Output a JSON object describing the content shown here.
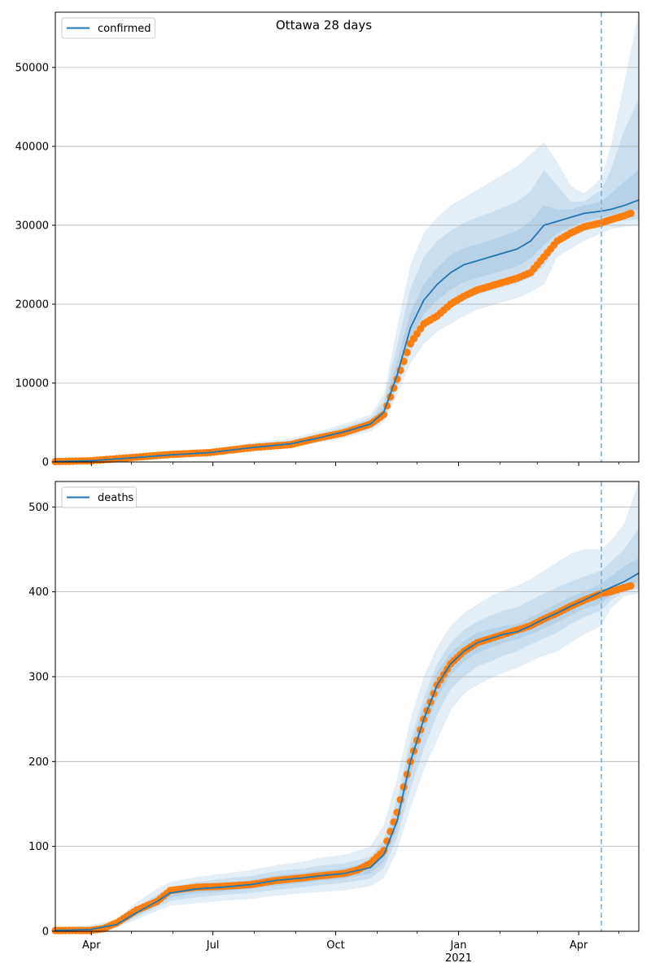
{
  "title": "Ottawa 28 days",
  "colors": {
    "model": "#1f77b4",
    "observed": "#ff7f0e",
    "band": "#1f77b4",
    "grid": "#b0b0b0",
    "forecast_line": "#7fb1d4"
  },
  "x_axis": {
    "tick_labels": [
      "Apr",
      "Jul",
      "Oct",
      "Jan",
      "Apr"
    ],
    "tick_days": [
      31,
      122,
      214,
      306,
      396
    ],
    "year_label": "2021",
    "minor_tick_days": [
      61,
      92,
      153,
      184,
      245,
      275,
      337,
      365,
      426
    ],
    "range_days": [
      4,
      441
    ],
    "forecast_day": 413
  },
  "chart_data": [
    {
      "type": "line",
      "legend": "confirmed",
      "ylim": [
        0,
        57000
      ],
      "yticks": [
        0,
        10000,
        20000,
        30000,
        40000,
        50000
      ],
      "tick_labels": [
        "0",
        "10000",
        "20000",
        "30000",
        "40000",
        "50000"
      ],
      "series": [
        {
          "name": "confirmed",
          "x": [
            4,
            30,
            60,
            90,
            120,
            150,
            180,
            200,
            220,
            240,
            250,
            260,
            270,
            280,
            290,
            300,
            310,
            320,
            330,
            340,
            350,
            360,
            370,
            380,
            390,
            400,
            413,
            420,
            430,
            441
          ],
          "values": [
            50,
            150,
            500,
            900,
            1200,
            1800,
            2300,
            3000,
            3800,
            4800,
            6300,
            11000,
            17000,
            20500,
            22500,
            24000,
            25000,
            25500,
            26000,
            26500,
            27000,
            28000,
            30000,
            30500,
            31000,
            31500,
            31800,
            32000,
            32500,
            33200
          ]
        }
      ],
      "observed": {
        "x": [
          4,
          30,
          60,
          90,
          120,
          150,
          180,
          200,
          220,
          240,
          250,
          260,
          270,
          280,
          290,
          300,
          310,
          320,
          330,
          340,
          350,
          360,
          370,
          380,
          390,
          400,
          413,
          420,
          430,
          435
        ],
        "values": [
          50,
          150,
          550,
          950,
          1200,
          1800,
          2200,
          3000,
          3700,
          4800,
          6000,
          10500,
          15000,
          17500,
          18500,
          20000,
          21000,
          21800,
          22300,
          22800,
          23300,
          24000,
          26000,
          28000,
          29000,
          29800,
          30300,
          30700,
          31200,
          31500
        ]
      },
      "bands": [
        {
          "lower": [
            50,
            120,
            400,
            700,
            900,
            1400,
            1800,
            2400,
            3000,
            3900,
            5000,
            8500,
            12500,
            15000,
            16500,
            17500,
            18500,
            19300,
            19800,
            20300,
            20800,
            21500,
            22500,
            26000,
            27000,
            28000,
            29000,
            29500,
            29800,
            30000
          ],
          "upper": [
            60,
            200,
            700,
            1200,
            1600,
            2400,
            3000,
            3800,
            4800,
            6000,
            8500,
            17000,
            25000,
            29000,
            31000,
            32500,
            33500,
            34500,
            35500,
            36500,
            37500,
            39000,
            40500,
            38000,
            35000,
            34000,
            36000,
            40000,
            48000,
            57000
          ]
        },
        {
          "lower": [
            50,
            130,
            420,
            760,
            1000,
            1500,
            1950,
            2600,
            3300,
            4200,
            5400,
            9500,
            14000,
            16800,
            18500,
            19600,
            20500,
            21200,
            21700,
            22200,
            22700,
            23400,
            24800,
            27500,
            28500,
            29200,
            30000,
            30300,
            30600,
            30800
          ],
          "upper": [
            55,
            180,
            620,
            1080,
            1450,
            2150,
            2700,
            3500,
            4400,
            5600,
            7700,
            14800,
            22000,
            26000,
            28000,
            29300,
            30300,
            31000,
            31600,
            32300,
            33000,
            34300,
            37000,
            35000,
            33000,
            33000,
            34500,
            37000,
            42000,
            46000
          ]
        },
        {
          "lower": [
            50,
            140,
            450,
            820,
            1080,
            1620,
            2100,
            2780,
            3520,
            4450,
            5800,
            10200,
            15500,
            18700,
            20500,
            21800,
            22800,
            23300,
            23800,
            24300,
            24800,
            25800,
            27500,
            29000,
            29800,
            30500,
            31000,
            31300,
            31700,
            32000
          ],
          "upper": [
            55,
            165,
            560,
            1000,
            1330,
            1980,
            2500,
            3250,
            4100,
            5200,
            7000,
            12800,
            19000,
            22500,
            24600,
            26200,
            27100,
            27600,
            28100,
            28700,
            29300,
            30500,
            32500,
            32000,
            32000,
            32500,
            33000,
            34000,
            35500,
            37000
          ]
        }
      ]
    },
    {
      "type": "line",
      "legend": "deaths",
      "ylim": [
        0,
        530
      ],
      "yticks": [
        0,
        100,
        200,
        300,
        400,
        500
      ],
      "tick_labels": [
        "0",
        "100",
        "200",
        "300",
        "400",
        "500"
      ],
      "series": [
        {
          "name": "deaths",
          "x": [
            4,
            30,
            50,
            65,
            80,
            90,
            110,
            130,
            150,
            170,
            190,
            200,
            220,
            240,
            250,
            260,
            270,
            280,
            290,
            300,
            310,
            320,
            330,
            340,
            350,
            360,
            370,
            380,
            390,
            400,
            413,
            420,
            430,
            441
          ],
          "values": [
            1,
            2,
            8,
            22,
            35,
            45,
            50,
            52,
            55,
            60,
            63,
            65,
            68,
            75,
            90,
            130,
            200,
            250,
            290,
            315,
            330,
            340,
            345,
            350,
            353,
            360,
            368,
            375,
            383,
            390,
            400,
            405,
            412,
            422
          ]
        }
      ],
      "observed": {
        "x": [
          4,
          30,
          40,
          50,
          65,
          80,
          90,
          110,
          130,
          150,
          170,
          190,
          200,
          220,
          230,
          240,
          250,
          260,
          270,
          280,
          290,
          300,
          310,
          320,
          330,
          340,
          350,
          360,
          370,
          380,
          390,
          400,
          413,
          420,
          430,
          435
        ],
        "values": [
          1,
          1,
          3,
          10,
          25,
          35,
          48,
          52,
          53,
          55,
          60,
          63,
          65,
          68,
          72,
          80,
          95,
          140,
          200,
          250,
          290,
          315,
          330,
          340,
          345,
          350,
          355,
          360,
          368,
          375,
          383,
          390,
          398,
          400,
          405,
          407
        ]
      },
      "bands": [
        {
          "lower": [
            0,
            0,
            4,
            14,
            24,
            30,
            33,
            36,
            38,
            42,
            45,
            46,
            48,
            53,
            62,
            95,
            145,
            190,
            225,
            260,
            280,
            290,
            298,
            305,
            310,
            318,
            325,
            330,
            340,
            350,
            360,
            380,
            395,
            398
          ],
          "upper": [
            5,
            7,
            14,
            34,
            50,
            58,
            64,
            68,
            72,
            78,
            82,
            86,
            90,
            100,
            125,
            180,
            250,
            300,
            335,
            360,
            375,
            385,
            395,
            402,
            407,
            415,
            425,
            435,
            445,
            450,
            450,
            460,
            480,
            530
          ]
        },
        {
          "lower": [
            0,
            1,
            5,
            17,
            28,
            36,
            40,
            43,
            45,
            49,
            52,
            54,
            57,
            62,
            74,
            110,
            168,
            215,
            255,
            285,
            300,
            312,
            318,
            325,
            330,
            338,
            345,
            352,
            362,
            370,
            378,
            390,
            400,
            404
          ],
          "upper": [
            3,
            5,
            12,
            29,
            43,
            52,
            58,
            62,
            65,
            71,
            74,
            77,
            80,
            88,
            108,
            155,
            225,
            275,
            315,
            340,
            355,
            365,
            372,
            378,
            382,
            390,
            398,
            405,
            412,
            418,
            425,
            435,
            450,
            475
          ]
        },
        {
          "lower": [
            1,
            1,
            6,
            19,
            31,
            40,
            45,
            47,
            50,
            54,
            57,
            59,
            62,
            68,
            82,
            120,
            185,
            235,
            275,
            302,
            318,
            328,
            334,
            340,
            344,
            350,
            357,
            364,
            372,
            380,
            386,
            396,
            406,
            412
          ],
          "upper": [
            2,
            3,
            10,
            25,
            39,
            50,
            55,
            57,
            60,
            66,
            69,
            71,
            74,
            82,
            98,
            140,
            215,
            265,
            305,
            328,
            342,
            352,
            356,
            360,
            362,
            370,
            378,
            386,
            394,
            400,
            410,
            418,
            430,
            440
          ]
        }
      ]
    }
  ]
}
